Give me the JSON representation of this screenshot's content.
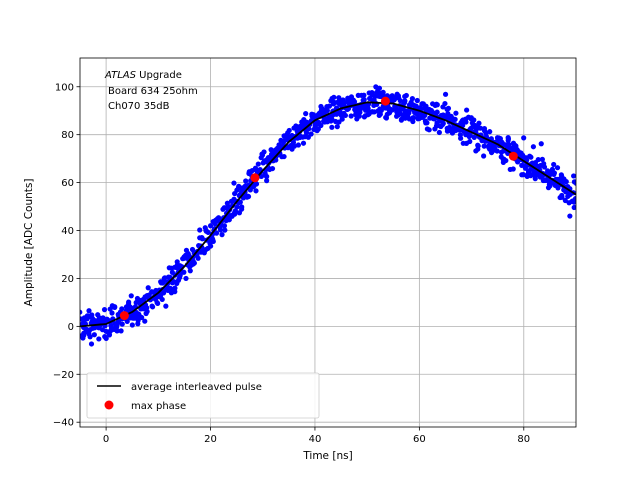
{
  "chart_data": {
    "type": "scatter",
    "xlabel": "Time [ns]",
    "ylabel": "Amplitude [ADC Counts]",
    "xlim": [
      -5,
      90
    ],
    "ylim": [
      -42,
      112
    ],
    "xticks": [
      0,
      20,
      40,
      60,
      80
    ],
    "yticks": [
      -40,
      -20,
      0,
      20,
      40,
      60,
      80,
      100
    ],
    "grid": true,
    "legend_position": "lower-left",
    "annotation": {
      "italic": "ATLAS",
      "line1_rest": " Upgrade",
      "line2": "Board 634 25ohm",
      "line3": "Ch070 35dB"
    },
    "pulse_peak_value": 93.5,
    "pulse_peak_time": 51.5,
    "noise_band": 4,
    "series": [
      {
        "name": "average interleaved pulse",
        "kind": "line",
        "color": "#000000",
        "x": [
          -5,
          0,
          5,
          10,
          15,
          20,
          25,
          30,
          35,
          40,
          45,
          50,
          55,
          60,
          65,
          70,
          75,
          80,
          85,
          90
        ],
        "y": [
          0,
          1,
          6,
          14,
          25,
          38,
          52,
          65,
          77,
          86,
          91,
          93.5,
          93,
          90,
          86,
          81,
          76,
          69,
          62,
          55
        ]
      },
      {
        "name": "max phase",
        "kind": "points",
        "color": "#ff0000",
        "x": [
          3.5,
          28.5,
          53.5,
          78
        ],
        "y": [
          4.5,
          62,
          94,
          71
        ]
      }
    ],
    "scatter_color": "#0000ff"
  }
}
